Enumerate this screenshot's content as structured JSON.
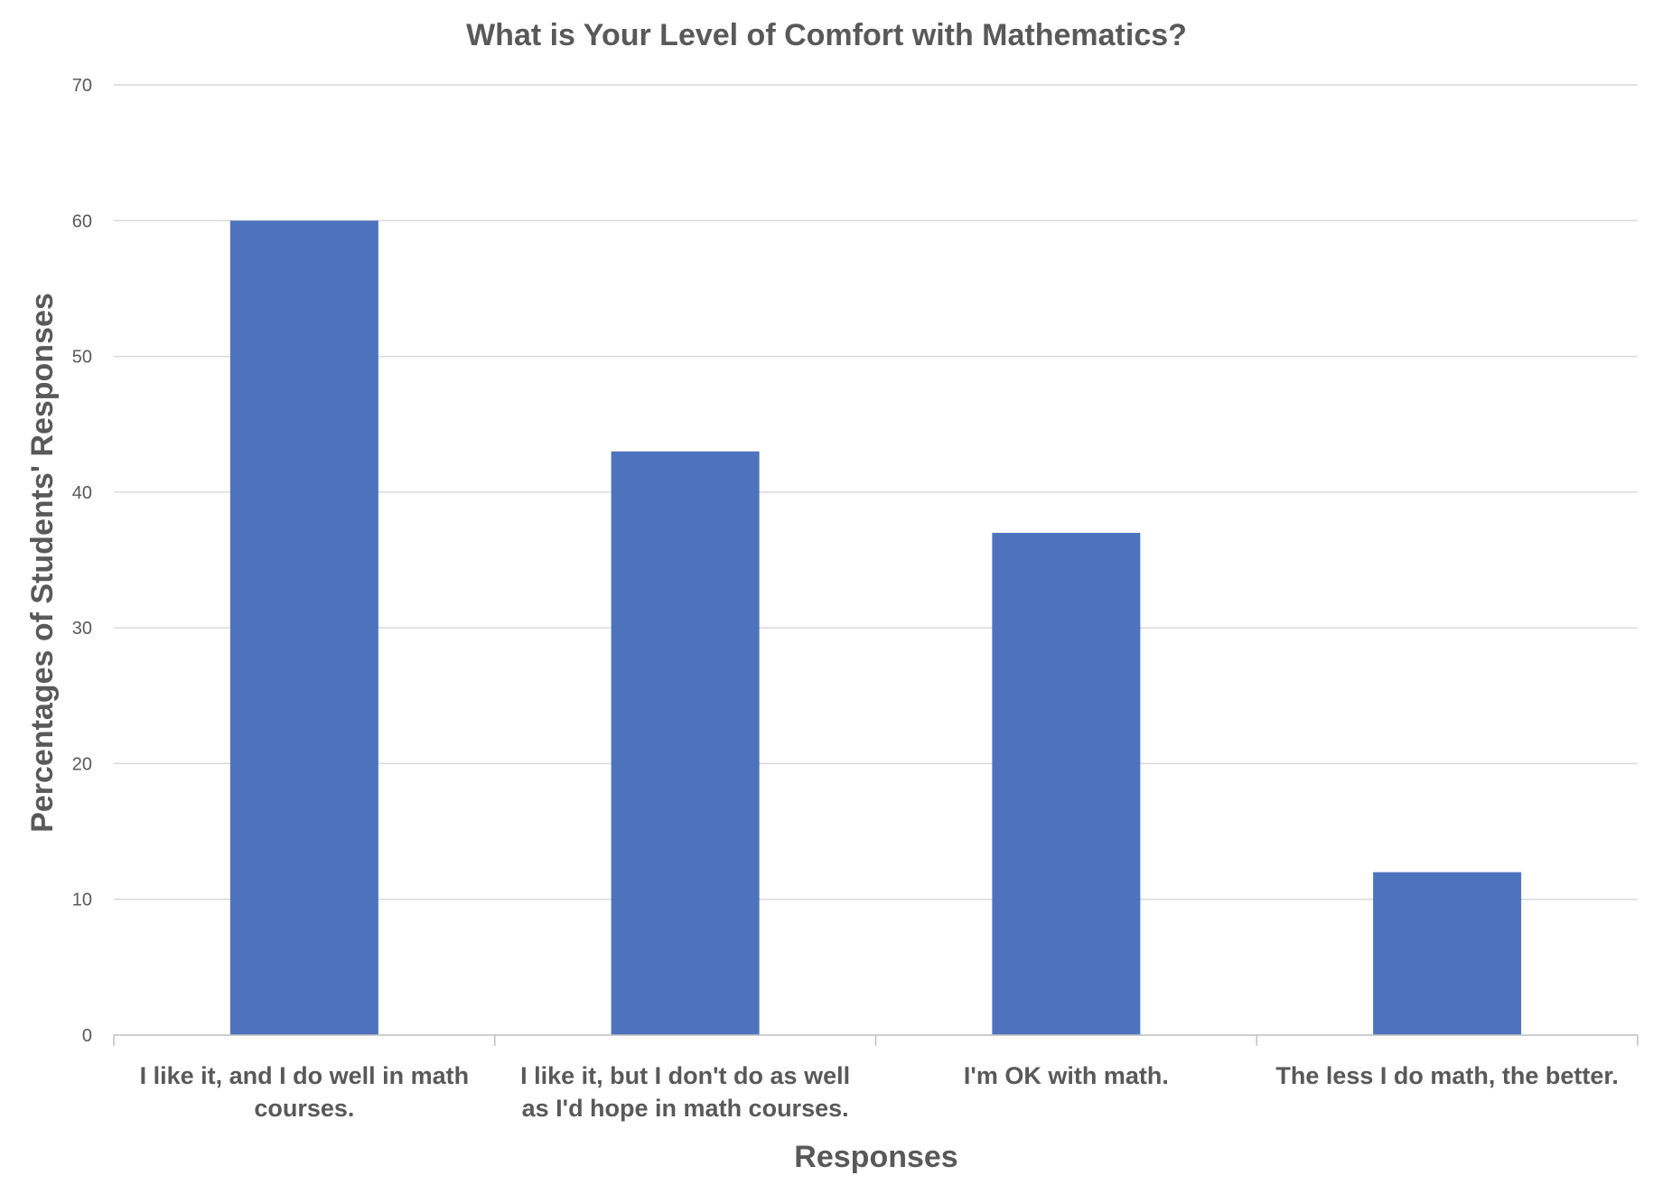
{
  "chart_data": {
    "type": "bar",
    "title": "What is Your Level of Comfort with Mathematics?",
    "xlabel": "Responses",
    "ylabel": "Percentages of Students' Responses",
    "categories": [
      [
        "I like it, and I do well in math",
        "courses."
      ],
      [
        "I like it, but I don't do as well",
        "as I'd hope in math courses."
      ],
      [
        "I'm OK with math."
      ],
      [
        "The less I do math, the better."
      ]
    ],
    "values": [
      60,
      43,
      37,
      12
    ],
    "ylim": [
      0,
      70
    ],
    "yticks": [
      0,
      10,
      20,
      30,
      40,
      50,
      60,
      70
    ],
    "grid": true,
    "bar_color": "#4e73be"
  }
}
